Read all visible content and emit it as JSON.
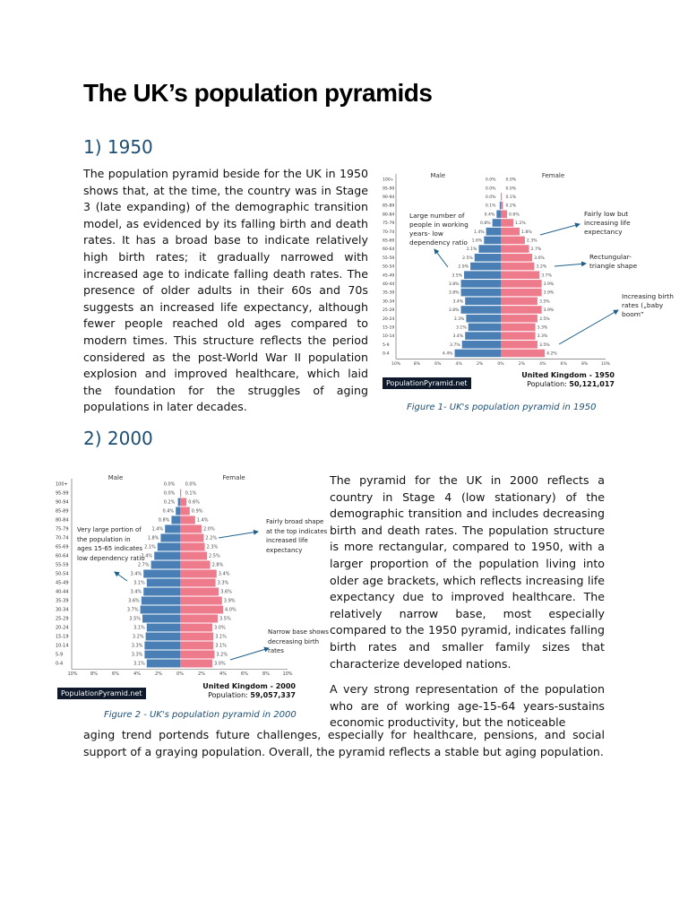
{
  "title": "The UK’s population pyramids",
  "section1": {
    "heading": "1) 1950",
    "text": "The population pyramid beside for the UK in 1950 shows that, at the time, the country was in Stage 3 (late expanding) of the demographic transition model, as evidenced by its falling birth and death rates. It has a broad base to indicate relatively high birth rates; it gradually narrowed with increased age to indicate falling death rates. The presence of older adults in their 60s and 70s suggests an increased life expectancy, although fewer people reached old ages compared to modern times. This structure reflects the period considered as the post-World War II population explosion and improved healthcare, which laid the foundation for the struggles of aging populations in later decades.",
    "caption": "Figure 1- UK's population pyramid in 1950",
    "annotations": [
      "Large number of people in working years- low dependency ratio",
      "Fairly low but increasing life expectancy",
      "Rectungular-triangle shape",
      "Increasing birth rates („baby boom”"
    ]
  },
  "section2": {
    "heading": "2) 2000",
    "text": "The pyramid for the UK in 2000 reflects a country in Stage 4 (low stationary) of the demographic transition and includes decreasing birth and death rates. The population structure is more rectangular, compared to 1950, with a larger proportion of the population living into older age brackets, which reflects increasing life expectancy due to improved healthcare. The relatively narrow base, most especially compared to the 1950 pyramid, indicates falling birth rates and smaller family sizes that characterize developed nations.",
    "text2a": "A very strong representation of the population who are of working age-15-64 years-sustains economic productivity, but the noticeable",
    "text2b": "aging trend portends future challenges, especially for healthcare, pensions, and social support of a graying population. Overall, the pyramid reflects a stable but aging population.",
    "caption": "Figure 2 - UK's population pyramid in 2000",
    "annotations": [
      "Very large portion of the population in ages 15-65 indicates low dependency ratio",
      "Fairly broad shape at the top indicates increased life expectancy",
      "Narrow base shows decreasing birth rates"
    ]
  },
  "chart_data": [
    {
      "type": "bar",
      "title": "United Kingdom - 1950",
      "population_label": "Population:",
      "population": "50,121,017",
      "source": "PopulationPyramid.net",
      "categories": [
        "100+",
        "95-99",
        "90-94",
        "85-89",
        "80-84",
        "75-79",
        "70-74",
        "65-69",
        "60-64",
        "55-59",
        "50-54",
        "45-49",
        "40-44",
        "35-39",
        "30-34",
        "25-29",
        "20-24",
        "15-19",
        "10-14",
        "5-9",
        "0-4"
      ],
      "series": [
        {
          "name": "Male",
          "values": [
            0.0,
            0.0,
            0.0,
            0.1,
            0.4,
            0.8,
            1.4,
            1.6,
            2.1,
            2.5,
            2.9,
            3.5,
            3.8,
            3.8,
            3.4,
            3.8,
            3.3,
            3.1,
            3.4,
            3.7,
            4.4
          ]
        },
        {
          "name": "Female",
          "values": [
            0.0,
            0.0,
            0.1,
            0.2,
            0.6,
            1.2,
            1.8,
            2.3,
            2.7,
            3.0,
            3.2,
            3.7,
            3.9,
            3.9,
            3.5,
            3.9,
            3.5,
            3.3,
            3.3,
            3.5,
            4.2
          ]
        }
      ],
      "xticks": [
        "10%",
        "8%",
        "6%",
        "4%",
        "2%",
        "0%",
        "2%",
        "4%",
        "6%",
        "8%",
        "10%"
      ],
      "xlim": [
        -10,
        10
      ],
      "colors": {
        "male": "#4a7fb5",
        "female": "#ee7b8c"
      }
    },
    {
      "type": "bar",
      "title": "United Kingdom - 2000",
      "population_label": "Population:",
      "population": "59,057,337",
      "source": "PopulationPyramid.net",
      "categories": [
        "100+",
        "95-99",
        "90-94",
        "85-89",
        "80-84",
        "75-79",
        "70-74",
        "65-69",
        "60-64",
        "55-59",
        "50-54",
        "45-49",
        "40-44",
        "35-39",
        "30-34",
        "25-29",
        "20-24",
        "15-19",
        "10-14",
        "5-9",
        "0-4"
      ],
      "series": [
        {
          "name": "Male",
          "values": [
            0.0,
            0.0,
            0.2,
            0.4,
            0.8,
            1.4,
            1.8,
            2.1,
            2.4,
            2.7,
            3.4,
            3.1,
            3.4,
            3.6,
            3.7,
            3.5,
            3.1,
            3.2,
            3.3,
            3.3,
            3.1
          ]
        },
        {
          "name": "Female",
          "values": [
            0.0,
            0.1,
            0.6,
            0.9,
            1.4,
            2.0,
            2.2,
            2.3,
            2.5,
            2.8,
            3.4,
            3.3,
            3.6,
            3.9,
            4.0,
            3.5,
            3.0,
            3.1,
            3.1,
            3.2,
            3.0
          ]
        }
      ],
      "xticks": [
        "10%",
        "8%",
        "6%",
        "4%",
        "2%",
        "0%",
        "2%",
        "4%",
        "6%",
        "8%",
        "10%"
      ],
      "xlim": [
        -10,
        10
      ],
      "colors": {
        "male": "#4a7fb5",
        "female": "#ee7b8c"
      }
    }
  ]
}
